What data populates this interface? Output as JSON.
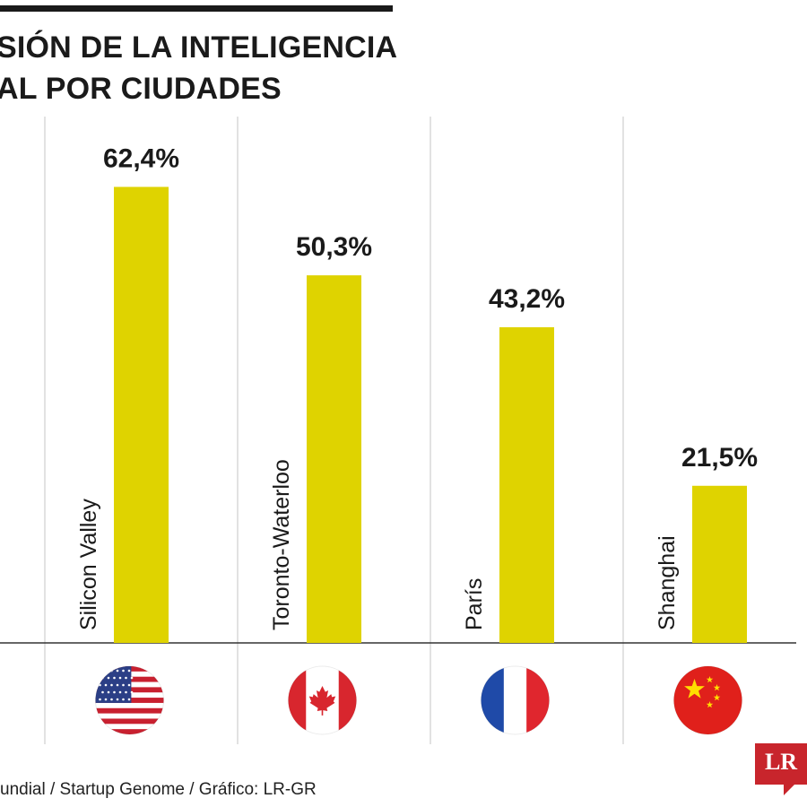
{
  "title_lines": [
    "SIÓN DE LA INTELIGENCIA",
    "AL POR CIUDADES"
  ],
  "y_fragment": "",
  "source": "undial / Startup Genome / Gráfico: LR-GR",
  "logo_text": "LR",
  "colors": {
    "bar": "#dfd300",
    "grid": "#cfcfcf",
    "baseline": "#333333",
    "logo": "#c8252c"
  },
  "chart_data": {
    "type": "bar",
    "title": "SIÓN DE LA INTELIGENCIA AL POR CIUDADES",
    "categories": [
      "Silicon Valley",
      "Toronto-Waterloo",
      "París",
      "Shanghai"
    ],
    "values": [
      62.4,
      50.3,
      43.2,
      21.5
    ],
    "value_labels": [
      "62,4%",
      "50,3%",
      "43,2%",
      "21,5%"
    ],
    "flags": [
      "united-states-flag-icon",
      "canada-flag-icon",
      "france-flag-icon",
      "china-flag-icon"
    ],
    "unit": "%",
    "grid": true
  }
}
